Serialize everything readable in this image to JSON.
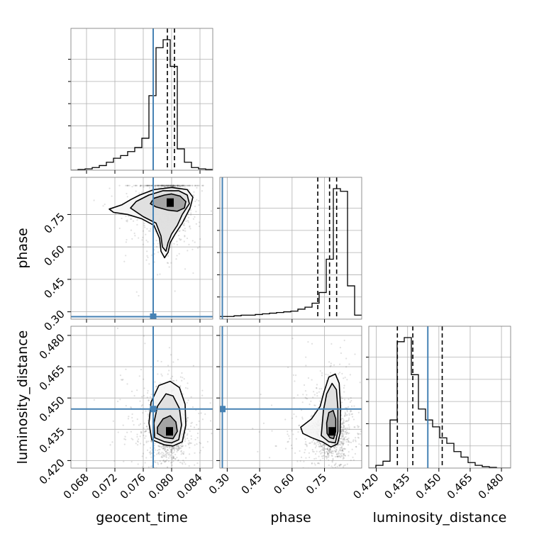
{
  "chart_data": {
    "type": "corner",
    "parameters": [
      "geocent_time",
      "phase",
      "luminosity_distance"
    ],
    "truth_color": "#4682b4",
    "truths": {
      "geocent_time": 0.0774,
      "phase": 0.2775,
      "luminosity_distance": 0.4447
    },
    "axes": {
      "geocent_time": {
        "label": "geocent_time",
        "range": [
          0.0658,
          0.0858
        ],
        "ticks": [
          0.068,
          0.072,
          0.076,
          0.08,
          0.084
        ],
        "tick_labels": [
          "0.068",
          "0.072",
          "0.076",
          "0.080",
          "0.084"
        ]
      },
      "phase": {
        "label": "phase",
        "range": [
          0.266,
          0.922
        ],
        "ticks": [
          0.3,
          0.45,
          0.6,
          0.75
        ],
        "tick_labels": [
          "0.30",
          "0.45",
          "0.60",
          "0.75"
        ]
      },
      "luminosity_distance": {
        "label": "luminosity_distance",
        "range": [
          0.4164,
          0.4844
        ],
        "ticks": [
          0.42,
          0.435,
          0.45,
          0.465,
          0.48
        ],
        "tick_labels": [
          "0.420",
          "0.435",
          "0.450",
          "0.465",
          "0.480"
        ]
      }
    },
    "histograms": [
      {
        "parameter": "geocent_time",
        "bin_edges": [
          0.0658,
          0.0668,
          0.0678,
          0.0688,
          0.0698,
          0.0708,
          0.0718,
          0.0728,
          0.0738,
          0.0748,
          0.0758,
          0.0768,
          0.0778,
          0.0788,
          0.0798,
          0.0808,
          0.0818,
          0.0828,
          0.0838,
          0.0848,
          0.0858
        ],
        "counts": [
          0,
          0.005,
          0.01,
          0.02,
          0.035,
          0.06,
          0.09,
          0.11,
          0.14,
          0.17,
          0.24,
          0.56,
          0.92,
          0.98,
          0.78,
          0.16,
          0.06,
          0.02,
          0.01,
          0.005
        ],
        "quantiles": [
          0.0774,
          0.0794,
          0.0804
        ]
      },
      {
        "parameter": "phase",
        "bin_edges": [
          0.266,
          0.29881,
          0.33161,
          0.36442,
          0.39722,
          0.43003,
          0.46284,
          0.49564,
          0.52845,
          0.56125,
          0.59406,
          0.62687,
          0.65967,
          0.69248,
          0.72528,
          0.75809,
          0.7909,
          0.8237,
          0.85651,
          0.88931,
          0.922
        ],
        "counts": [
          0.02,
          0.02,
          0.025,
          0.03,
          0.03,
          0.035,
          0.04,
          0.045,
          0.05,
          0.055,
          0.06,
          0.075,
          0.09,
          0.12,
          0.2,
          0.45,
          0.98,
          0.96,
          0.25,
          0.03
        ],
        "quantiles": [
          0.7188,
          0.7733,
          0.8061
        ]
      },
      {
        "parameter": "luminosity_distance",
        "bin_edges": [
          0.4164,
          0.4198,
          0.4232,
          0.4266,
          0.43,
          0.4334,
          0.4368,
          0.4402,
          0.4436,
          0.447,
          0.4504,
          0.4538,
          0.4572,
          0.4606,
          0.464,
          0.4674,
          0.4708,
          0.4742,
          0.4776,
          0.481,
          0.4844
        ],
        "counts": [
          0,
          0.02,
          0.05,
          0.35,
          0.92,
          0.95,
          0.68,
          0.43,
          0.35,
          0.3,
          0.22,
          0.18,
          0.12,
          0.08,
          0.04,
          0.02,
          0.01,
          0.005,
          0,
          0
        ],
        "quantiles": [
          0.4301,
          0.4375,
          0.4516
        ]
      }
    ],
    "density_2d": [
      {
        "x": "geocent_time",
        "y": "phase",
        "peak": {
          "x": 0.0798,
          "y": 0.805
        },
        "contours": [
          [
            [
              0.0775,
              0.825
            ],
            [
              0.079,
              0.84
            ],
            [
              0.08,
              0.845
            ],
            [
              0.0812,
              0.835
            ],
            [
              0.082,
              0.81
            ],
            [
              0.0818,
              0.78
            ],
            [
              0.0808,
              0.765
            ],
            [
              0.0795,
              0.77
            ],
            [
              0.0778,
              0.785
            ],
            [
              0.077,
              0.8
            ]
          ],
          [
            [
              0.0768,
              0.84
            ],
            [
              0.0788,
              0.86
            ],
            [
              0.081,
              0.86
            ],
            [
              0.0822,
              0.84
            ],
            [
              0.0825,
              0.8
            ],
            [
              0.0815,
              0.75
            ],
            [
              0.0808,
              0.7
            ],
            [
              0.08,
              0.66
            ],
            [
              0.0795,
              0.62
            ],
            [
              0.0792,
              0.58
            ],
            [
              0.0787,
              0.6
            ],
            [
              0.0785,
              0.65
            ],
            [
              0.0778,
              0.71
            ],
            [
              0.076,
              0.74
            ],
            [
              0.0742,
              0.78
            ],
            [
              0.075,
              0.81
            ]
          ],
          [
            [
              0.0755,
              0.84
            ],
            [
              0.0775,
              0.865
            ],
            [
              0.08,
              0.875
            ],
            [
              0.0822,
              0.865
            ],
            [
              0.083,
              0.83
            ],
            [
              0.0826,
              0.78
            ],
            [
              0.0815,
              0.71
            ],
            [
              0.0805,
              0.66
            ],
            [
              0.0798,
              0.62
            ],
            [
              0.0795,
              0.575
            ],
            [
              0.079,
              0.55
            ],
            [
              0.0785,
              0.58
            ],
            [
              0.0783,
              0.64
            ],
            [
              0.0775,
              0.7
            ],
            [
              0.0758,
              0.73
            ],
            [
              0.0738,
              0.75
            ],
            [
              0.0718,
              0.76
            ],
            [
              0.0712,
              0.775
            ],
            [
              0.073,
              0.795
            ],
            [
              0.0743,
              0.82
            ]
          ]
        ],
        "blob": {
          "n": 1400,
          "seed": 7
        }
      },
      {
        "x": "geocent_time",
        "y": "luminosity_distance",
        "peak": {
          "x": 0.0797,
          "y": 0.434
        },
        "contours": [
          [
            [
              0.079,
              0.431
            ],
            [
              0.078,
              0.433
            ],
            [
              0.078,
              0.436
            ],
            [
              0.0788,
              0.44
            ],
            [
              0.0798,
              0.4415
            ],
            [
              0.0806,
              0.4385
            ],
            [
              0.0808,
              0.434
            ],
            [
              0.0802,
              0.4305
            ]
          ],
          [
            [
              0.079,
              0.429
            ],
            [
              0.0776,
              0.431
            ],
            [
              0.0775,
              0.438
            ],
            [
              0.078,
              0.446
            ],
            [
              0.0792,
              0.452
            ],
            [
              0.0802,
              0.451
            ],
            [
              0.0811,
              0.445
            ],
            [
              0.0814,
              0.437
            ],
            [
              0.081,
              0.43
            ],
            [
              0.08,
              0.4285
            ]
          ],
          [
            [
              0.079,
              0.4275
            ],
            [
              0.0772,
              0.43
            ],
            [
              0.0768,
              0.438
            ],
            [
              0.0771,
              0.448
            ],
            [
              0.0782,
              0.456
            ],
            [
              0.0798,
              0.458
            ],
            [
              0.0811,
              0.455
            ],
            [
              0.0819,
              0.447
            ],
            [
              0.082,
              0.437
            ],
            [
              0.0815,
              0.429
            ],
            [
              0.0802,
              0.427
            ]
          ]
        ],
        "blob": {
          "n": 1400,
          "seed": 11
        }
      },
      {
        "x": "phase",
        "y": "luminosity_distance",
        "peak": {
          "x": 0.785,
          "y": 0.434
        },
        "contours": [
          [
            [
              0.775,
              0.431
            ],
            [
              0.762,
              0.433
            ],
            [
              0.76,
              0.438
            ],
            [
              0.77,
              0.443
            ],
            [
              0.79,
              0.444
            ],
            [
              0.802,
              0.44
            ],
            [
              0.802,
              0.434
            ],
            [
              0.792,
              0.4305
            ]
          ],
          [
            [
              0.77,
              0.429
            ],
            [
              0.735,
              0.432
            ],
            [
              0.745,
              0.444
            ],
            [
              0.76,
              0.452
            ],
            [
              0.785,
              0.457
            ],
            [
              0.805,
              0.454
            ],
            [
              0.812,
              0.445
            ],
            [
              0.812,
              0.434
            ],
            [
              0.8,
              0.4285
            ]
          ],
          [
            [
              0.78,
              0.4265
            ],
            [
              0.74,
              0.429
            ],
            [
              0.69,
              0.431
            ],
            [
              0.65,
              0.433
            ],
            [
              0.64,
              0.436
            ],
            [
              0.69,
              0.44
            ],
            [
              0.73,
              0.446
            ],
            [
              0.748,
              0.453
            ],
            [
              0.77,
              0.46
            ],
            [
              0.8,
              0.4615
            ],
            [
              0.818,
              0.457
            ],
            [
              0.824,
              0.446
            ],
            [
              0.822,
              0.433
            ],
            [
              0.81,
              0.428
            ]
          ]
        ],
        "blob": {
          "n": 1400,
          "seed": 23
        }
      }
    ]
  }
}
